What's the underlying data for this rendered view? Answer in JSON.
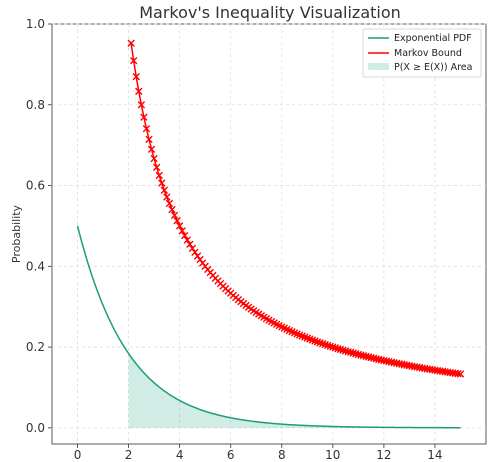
{
  "chart_data": {
    "type": "line",
    "title": "Markov's Inequality Visualization",
    "xlabel": "",
    "ylabel": "Probability",
    "xlim": [
      -1,
      16
    ],
    "ylim": [
      -0.04,
      1.0
    ],
    "x_ticks": [
      0,
      2,
      4,
      6,
      8,
      10,
      12,
      14
    ],
    "y_ticks": [
      0.0,
      0.2,
      0.4,
      0.6,
      0.8,
      1.0
    ],
    "x_tick_labels": [
      "0",
      "2",
      "4",
      "6",
      "8",
      "10",
      "12",
      "14"
    ],
    "y_tick_labels": [
      "0.0",
      "0.2",
      "0.4",
      "0.6",
      "0.8",
      "1.0"
    ],
    "grid": true,
    "legend_position": "top-right",
    "series": [
      {
        "name": "Exponential PDF",
        "kind": "line",
        "color": "#1a9e7a",
        "function": "0.5*exp(-0.5*x)",
        "x_range": [
          0,
          15
        ]
      },
      {
        "name": "Markov Bound",
        "kind": "line-with-x-markers",
        "color": "#ff0000",
        "function": "2/x",
        "x_range": [
          2.1,
          15
        ],
        "marker_spacing": 0.1
      },
      {
        "name": "P(X ≥ E(X)) Area",
        "kind": "area",
        "color": "#1a9e7a",
        "fill_opacity": 0.2,
        "under": "Exponential PDF",
        "x_range": [
          2,
          15
        ]
      }
    ]
  }
}
